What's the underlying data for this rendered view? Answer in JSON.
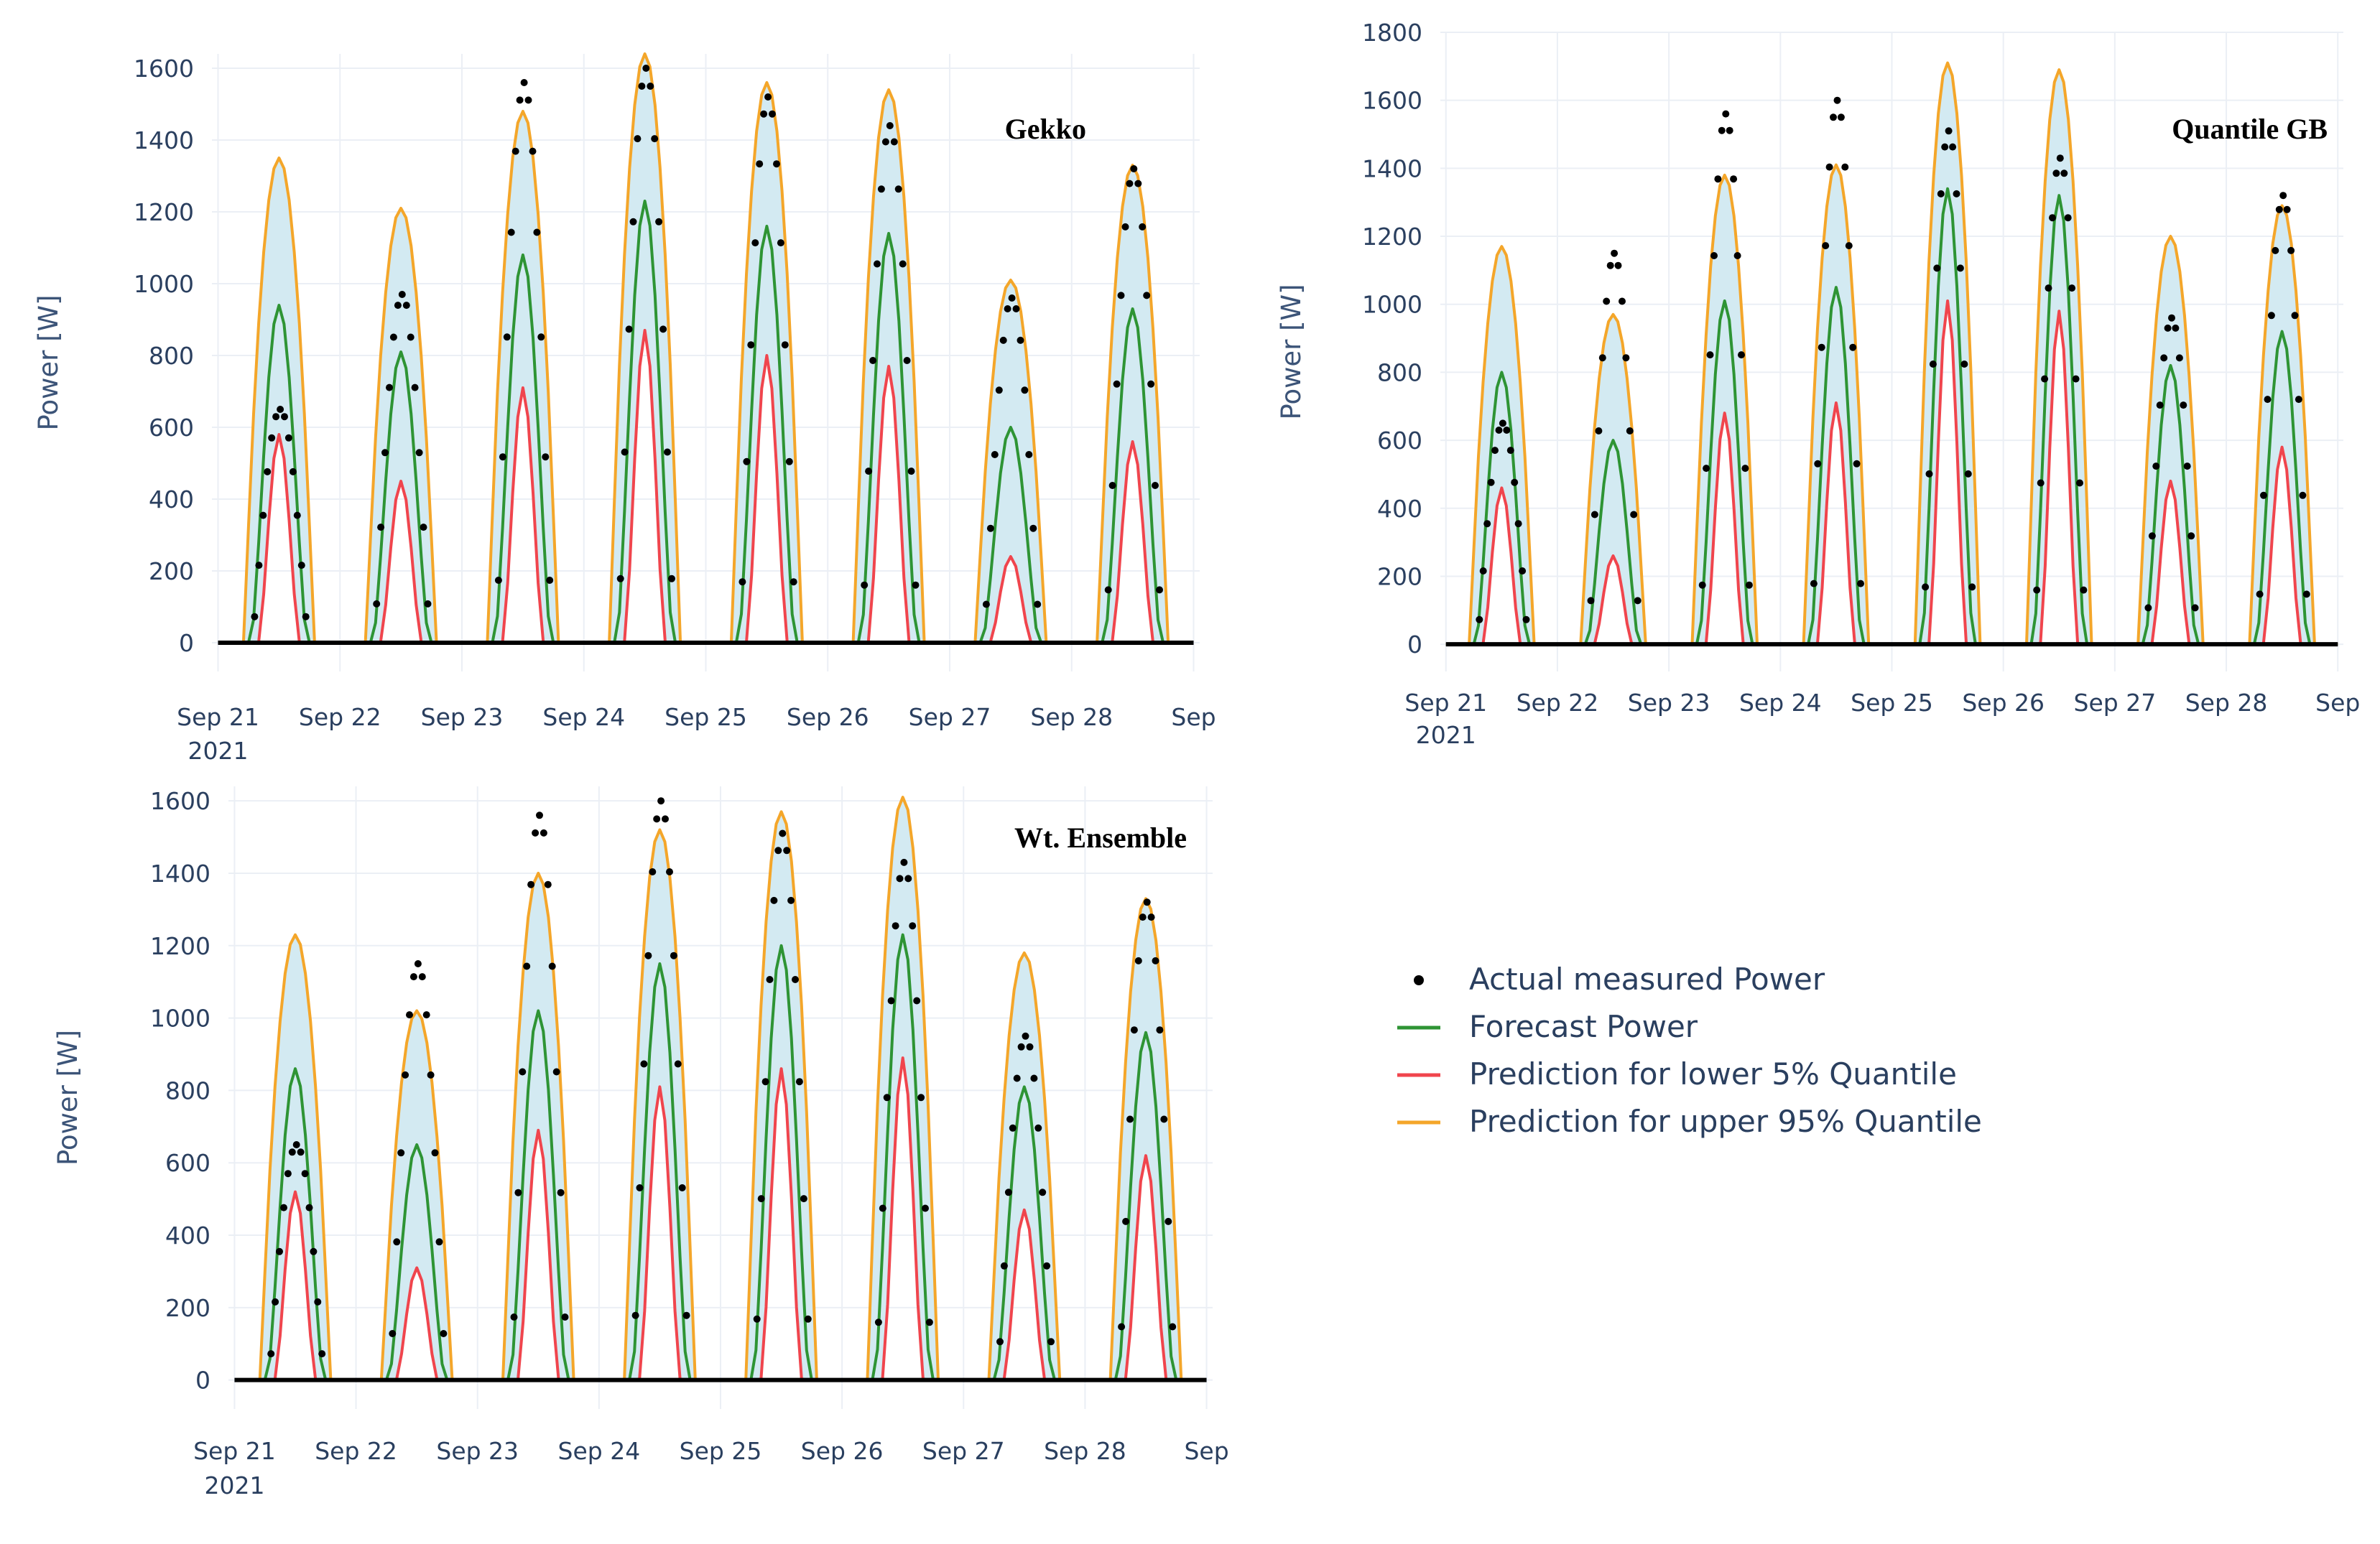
{
  "chart_data": [
    {
      "type": "line",
      "title": "Gekko",
      "xlabel": "",
      "ylabel": "Power [W]",
      "ylim": [
        -80,
        1640
      ],
      "yticks": [
        0,
        200,
        400,
        600,
        800,
        1000,
        1200,
        1400,
        1600
      ],
      "x_tick_labels": [
        "Sep 21",
        "Sep 22",
        "Sep 23",
        "Sep 24",
        "Sep 25",
        "Sep 26",
        "Sep 27",
        "Sep 28",
        "Sep"
      ],
      "x_year_label": "2021",
      "x_range_days": [
        -0.05,
        8.05
      ],
      "day_peaks": {
        "upper_95": [
          1350,
          1210,
          1480,
          1640,
          1560,
          1540,
          1010,
          1330
        ],
        "forecast": [
          940,
          810,
          1080,
          1230,
          1160,
          1140,
          600,
          930
        ],
        "lower_5": [
          580,
          450,
          710,
          870,
          800,
          770,
          240,
          560
        ],
        "actual": [
          650,
          970,
          1560,
          1600,
          1520,
          1440,
          960,
          1320
        ]
      },
      "series": [
        {
          "name": "Actual measured Power",
          "color": "#000000",
          "kind": "markers"
        },
        {
          "name": "Forecast Power",
          "color": "#2e9434",
          "kind": "line"
        },
        {
          "name": "Prediction for lower 5% Quantile",
          "color": "#f0454d",
          "kind": "line"
        },
        {
          "name": "Prediction for upper 95% Quantile",
          "color": "#f4a62a",
          "kind": "line"
        }
      ]
    },
    {
      "type": "line",
      "title": "Quantile GB",
      "xlabel": "",
      "ylabel": "Power [W]",
      "ylim": [
        -80,
        1800
      ],
      "yticks": [
        0,
        200,
        400,
        600,
        800,
        1000,
        1200,
        1400,
        1600,
        1800
      ],
      "x_tick_labels": [
        "Sep 21",
        "Sep 22",
        "Sep 23",
        "Sep 24",
        "Sep 25",
        "Sep 26",
        "Sep 27",
        "Sep 28",
        "Sep"
      ],
      "x_year_label": "2021",
      "x_range_days": [
        -0.05,
        8.05
      ],
      "day_peaks": {
        "upper_95": [
          1170,
          970,
          1380,
          1410,
          1710,
          1690,
          1200,
          1290
        ],
        "forecast": [
          800,
          600,
          1010,
          1050,
          1340,
          1320,
          820,
          920
        ],
        "lower_5": [
          460,
          260,
          680,
          710,
          1010,
          980,
          480,
          580
        ],
        "actual": [
          650,
          1150,
          1560,
          1600,
          1510,
          1430,
          960,
          1320
        ]
      },
      "series": [
        {
          "name": "Actual measured Power",
          "color": "#000000",
          "kind": "markers"
        },
        {
          "name": "Forecast Power",
          "color": "#2e9434",
          "kind": "line"
        },
        {
          "name": "Prediction for lower 5% Quantile",
          "color": "#f0454d",
          "kind": "line"
        },
        {
          "name": "Prediction for upper 95% Quantile",
          "color": "#f4a62a",
          "kind": "line"
        }
      ]
    },
    {
      "type": "line",
      "title": "Wt. Ensemble",
      "xlabel": "",
      "ylabel": "Power [W]",
      "ylim": [
        -80,
        1640
      ],
      "yticks": [
        0,
        200,
        400,
        600,
        800,
        1000,
        1200,
        1400,
        1600
      ],
      "x_tick_labels": [
        "Sep 21",
        "Sep 22",
        "Sep 23",
        "Sep 24",
        "Sep 25",
        "Sep 26",
        "Sep 27",
        "Sep 28",
        "Sep"
      ],
      "x_year_label": "2021",
      "x_range_days": [
        -0.05,
        8.05
      ],
      "day_peaks": {
        "upper_95": [
          1230,
          1020,
          1400,
          1520,
          1570,
          1610,
          1180,
          1330
        ],
        "forecast": [
          860,
          650,
          1020,
          1150,
          1200,
          1230,
          810,
          960
        ],
        "lower_5": [
          520,
          310,
          690,
          810,
          860,
          890,
          470,
          620
        ],
        "actual": [
          650,
          1150,
          1560,
          1600,
          1510,
          1430,
          950,
          1320
        ]
      },
      "series": [
        {
          "name": "Actual measured Power",
          "color": "#000000",
          "kind": "markers"
        },
        {
          "name": "Forecast Power",
          "color": "#2e9434",
          "kind": "line"
        },
        {
          "name": "Prediction for lower 5% Quantile",
          "color": "#f0454d",
          "kind": "line"
        },
        {
          "name": "Prediction for upper 95% Quantile",
          "color": "#f4a62a",
          "kind": "line"
        }
      ]
    }
  ],
  "legend": {
    "items": [
      {
        "label": "Actual measured Power",
        "color": "#000000",
        "kind": "marker"
      },
      {
        "label": "Forecast Power",
        "color": "#2e9434",
        "kind": "line"
      },
      {
        "label": "Prediction for lower 5% Quantile",
        "color": "#f0454d",
        "kind": "line"
      },
      {
        "label": "Prediction for upper 95% Quantile",
        "color": "#f4a62a",
        "kind": "line"
      }
    ]
  },
  "colors": {
    "band_fill": "#d3eaf2",
    "grid": "#ebeff5",
    "zero_line": "#000000"
  }
}
